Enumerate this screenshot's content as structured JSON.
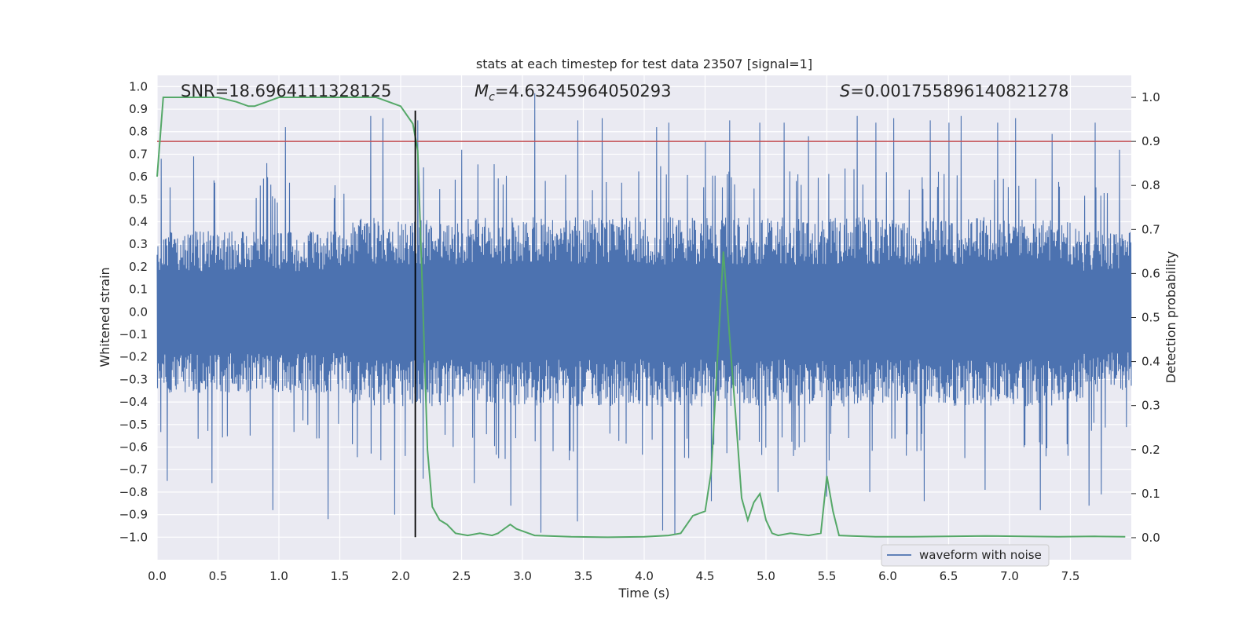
{
  "chart_data": {
    "type": "line",
    "title": "stats at each timestep for test data 23507 [signal=1]",
    "xlabel": "Time (s)",
    "ylabel": "Whitened strain",
    "y2label": "Detection probability",
    "xlim": [
      0.0,
      8.0
    ],
    "ylim": [
      -1.1,
      1.05
    ],
    "y2lim": [
      -0.05,
      1.05
    ],
    "xticks": [
      "0.0",
      "0.5",
      "1.0",
      "1.5",
      "2.0",
      "2.5",
      "3.0",
      "3.5",
      "4.0",
      "4.5",
      "5.0",
      "5.5",
      "6.0",
      "6.5",
      "7.0",
      "7.5"
    ],
    "yticks": [
      "1.0",
      "0.9",
      "0.8",
      "0.7",
      "0.6",
      "0.5",
      "0.4",
      "0.3",
      "0.2",
      "0.1",
      "0.0",
      "-0.1",
      "-0.2",
      "-0.3",
      "-0.4",
      "-0.5",
      "-0.6",
      "-0.7",
      "-0.8",
      "-0.9",
      "-1.0"
    ],
    "y2ticks": [
      "1.0",
      "0.9",
      "0.8",
      "0.7",
      "0.6",
      "0.5",
      "0.4",
      "0.3",
      "0.2",
      "0.1",
      "0.0"
    ],
    "grid": true,
    "legend_position": "lower-right",
    "annotations": {
      "snr": "SNR=18.6964111328125",
      "mc_symbol": "M",
      "mc_sub": "c",
      "mc_value": "=4.63245964050293",
      "s_symbol": "S",
      "s_value": "=0.001755896140821278"
    },
    "threshold_line": {
      "axis": "y2",
      "value": 0.9,
      "color": "#c44e52"
    },
    "event_marker": {
      "x": 2.12,
      "ymin": -1.0,
      "ymax": 0.97,
      "color": "#000000"
    },
    "series": [
      {
        "name": "waveform with noise",
        "axis": "y",
        "color": "#4c72b0",
        "band_quiet": 0.36,
        "band_active": 0.42,
        "peaks_up": [
          [
            0.03,
            0.68
          ],
          [
            0.3,
            0.69
          ],
          [
            0.9,
            0.66
          ],
          [
            1.05,
            0.82
          ],
          [
            1.75,
            0.87
          ],
          [
            1.85,
            0.86
          ],
          [
            2.14,
            0.85
          ],
          [
            2.5,
            0.72
          ],
          [
            3.1,
            0.97
          ],
          [
            3.45,
            0.85
          ],
          [
            3.65,
            0.86
          ],
          [
            4.1,
            0.82
          ],
          [
            4.2,
            0.84
          ],
          [
            4.5,
            0.76
          ],
          [
            4.7,
            0.85
          ],
          [
            4.95,
            0.84
          ],
          [
            5.15,
            0.84
          ],
          [
            5.35,
            0.78
          ],
          [
            5.75,
            0.87
          ],
          [
            5.9,
            0.84
          ],
          [
            6.05,
            0.86
          ],
          [
            6.35,
            0.85
          ],
          [
            6.5,
            0.84
          ],
          [
            6.6,
            0.87
          ],
          [
            6.9,
            0.84
          ],
          [
            7.05,
            0.86
          ],
          [
            7.35,
            0.79
          ],
          [
            7.7,
            0.84
          ],
          [
            7.9,
            0.72
          ]
        ],
        "peaks_down": [
          [
            0.08,
            -0.75
          ],
          [
            0.45,
            -0.76
          ],
          [
            0.95,
            -0.88
          ],
          [
            1.4,
            -0.92
          ],
          [
            1.95,
            -0.9
          ],
          [
            2.18,
            -0.74
          ],
          [
            2.6,
            -0.76
          ],
          [
            2.9,
            -0.86
          ],
          [
            3.15,
            -0.98
          ],
          [
            3.45,
            -0.93
          ],
          [
            4.15,
            -0.97
          ],
          [
            4.25,
            -0.99
          ],
          [
            4.55,
            -0.84
          ],
          [
            5.1,
            -0.8
          ],
          [
            5.5,
            -0.82
          ],
          [
            5.85,
            -0.8
          ],
          [
            6.3,
            -0.84
          ],
          [
            6.8,
            -0.79
          ],
          [
            7.25,
            -0.88
          ],
          [
            7.65,
            -0.86
          ],
          [
            7.75,
            -0.81
          ]
        ]
      },
      {
        "name": "",
        "axis": "y2",
        "color": "#55a868",
        "x": [
          0.0,
          0.05,
          0.1,
          0.3,
          0.5,
          0.65,
          0.75,
          0.8,
          0.9,
          1.0,
          1.2,
          1.4,
          1.6,
          1.8,
          2.0,
          2.1,
          2.14,
          2.18,
          2.22,
          2.26,
          2.32,
          2.38,
          2.45,
          2.55,
          2.65,
          2.75,
          2.8,
          2.9,
          2.95,
          3.05,
          3.1,
          3.4,
          3.7,
          4.0,
          4.2,
          4.3,
          4.4,
          4.5,
          4.55,
          4.6,
          4.65,
          4.7,
          4.75,
          4.8,
          4.85,
          4.9,
          4.95,
          5.0,
          5.05,
          5.1,
          5.2,
          5.35,
          5.45,
          5.5,
          5.55,
          5.6,
          5.7,
          5.9,
          6.2,
          6.5,
          6.8,
          7.1,
          7.4,
          7.7,
          7.95
        ],
        "y": [
          0.82,
          1.0,
          1.0,
          1.0,
          1.0,
          0.99,
          0.98,
          0.98,
          0.99,
          1.0,
          1.0,
          1.0,
          1.0,
          1.0,
          0.98,
          0.94,
          0.88,
          0.55,
          0.2,
          0.07,
          0.04,
          0.03,
          0.01,
          0.005,
          0.01,
          0.005,
          0.01,
          0.03,
          0.02,
          0.01,
          0.005,
          0.002,
          0.001,
          0.002,
          0.005,
          0.01,
          0.05,
          0.06,
          0.15,
          0.4,
          0.65,
          0.46,
          0.28,
          0.09,
          0.04,
          0.08,
          0.1,
          0.04,
          0.01,
          0.005,
          0.01,
          0.005,
          0.01,
          0.14,
          0.06,
          0.005,
          0.004,
          0.002,
          0.002,
          0.003,
          0.004,
          0.003,
          0.002,
          0.003,
          0.002
        ]
      }
    ]
  }
}
